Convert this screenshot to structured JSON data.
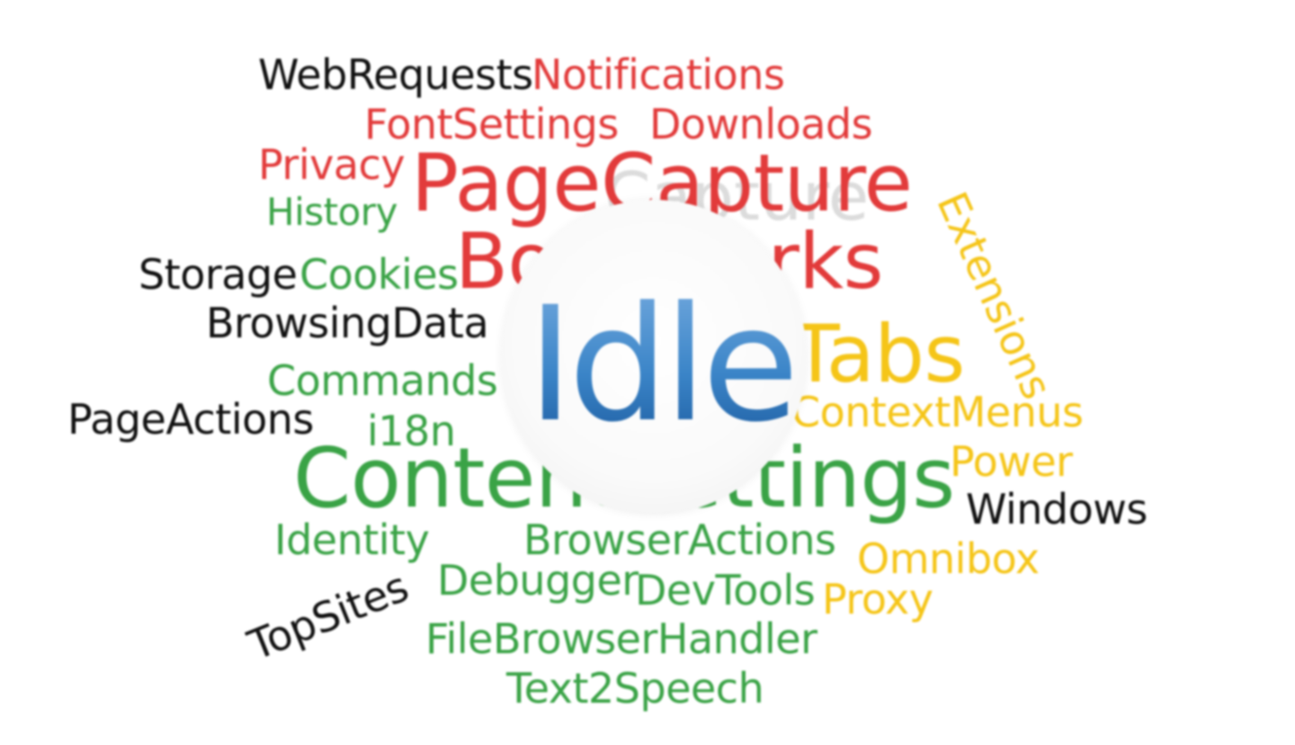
{
  "words": [
    {
      "id": "webrequests",
      "text": "WebRequests"
    },
    {
      "id": "notifications",
      "text": "Notifications"
    },
    {
      "id": "fontsettings",
      "text": "FontSettings"
    },
    {
      "id": "downloads",
      "text": "Downloads"
    },
    {
      "id": "privacy",
      "text": "Privacy"
    },
    {
      "id": "history",
      "text": "History"
    },
    {
      "id": "pagecapture",
      "text": "PageCapture"
    },
    {
      "id": "extensions",
      "text": "Extensions"
    },
    {
      "id": "storage",
      "text": "Storage"
    },
    {
      "id": "cookies",
      "text": "Cookies"
    },
    {
      "id": "bookmarks",
      "text": "Bookmarks"
    },
    {
      "id": "browsingdata",
      "text": "BrowsingData"
    },
    {
      "id": "idle",
      "text": "Idle"
    },
    {
      "id": "tabs",
      "text": "Tabs"
    },
    {
      "id": "commands",
      "text": "Commands"
    },
    {
      "id": "pageactions",
      "text": "PageActions"
    },
    {
      "id": "i18n",
      "text": "i18n"
    },
    {
      "id": "contextmenus",
      "text": "ContextMenus"
    },
    {
      "id": "contentsettings",
      "text": "ContentSettings"
    },
    {
      "id": "power",
      "text": "Power"
    },
    {
      "id": "windows",
      "text": "Windows"
    },
    {
      "id": "identity",
      "text": "Identity"
    },
    {
      "id": "browseractions",
      "text": "BrowserActions"
    },
    {
      "id": "omnibox",
      "text": "Omnibox"
    },
    {
      "id": "debugger",
      "text": "Debugger"
    },
    {
      "id": "devtools",
      "text": "DevTools"
    },
    {
      "id": "proxy",
      "text": "Proxy"
    },
    {
      "id": "topsites",
      "text": "TopSites"
    },
    {
      "id": "filebrowserhandler",
      "text": "FileBrowserHandler"
    },
    {
      "id": "text2speech",
      "text": "Text2Speech"
    }
  ],
  "colors": {
    "red": "#e23b3b",
    "yellow": "#f5c518",
    "green": "#3aa346",
    "black": "#111111",
    "blue": "#3b85c8",
    "disc": "#f4f4f4"
  }
}
